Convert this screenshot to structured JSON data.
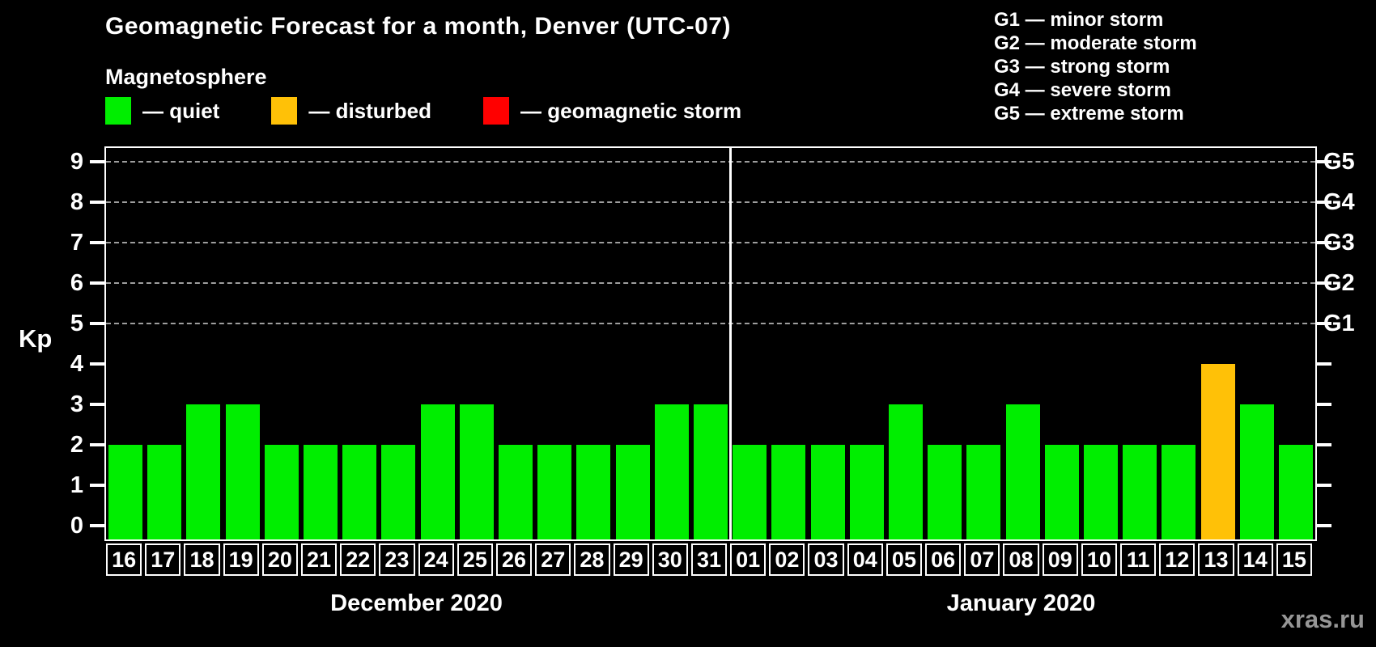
{
  "header": {
    "title": "Geomagnetic Forecast for a month, Denver (UTC-07)",
    "subtitle": "Magnetosphere"
  },
  "legend": {
    "items": [
      {
        "name": "quiet",
        "color": "#00ee00",
        "label": "— quiet"
      },
      {
        "name": "disturbed",
        "color": "#ffc107",
        "label": "— disturbed"
      },
      {
        "name": "geomagnetic-storm",
        "color": "#ff0000",
        "label": "— geomagnetic storm"
      }
    ]
  },
  "storm_legend": {
    "items": [
      "G1 — minor storm",
      "G2 — moderate storm",
      "G3 — strong storm",
      "G4 — severe storm",
      "G5 — extreme storm"
    ]
  },
  "watermark": "xras.ru",
  "chart_data": {
    "type": "bar",
    "title": "Geomagnetic Forecast for a month, Denver (UTC-07)",
    "subtitle": "Magnetosphere",
    "ylabel": "Kp",
    "ylim": [
      0,
      9
    ],
    "y_ticks": [
      0,
      1,
      2,
      3,
      4,
      5,
      6,
      7,
      8,
      9
    ],
    "gridlines_at": [
      5,
      6,
      7,
      8,
      9
    ],
    "grid": "dashed-horizontal",
    "legend_position": "top",
    "right_axis_labels": [
      {
        "kp": 5,
        "label": "G1"
      },
      {
        "kp": 6,
        "label": "G2"
      },
      {
        "kp": 7,
        "label": "G3"
      },
      {
        "kp": 8,
        "label": "G4"
      },
      {
        "kp": 9,
        "label": "G5"
      }
    ],
    "status_colors": {
      "quiet": "#00ee00",
      "disturbed": "#ffc107",
      "storm": "#ff0000"
    },
    "groups": [
      {
        "label": "December 2020",
        "days": [
          {
            "day": "16",
            "value": 2,
            "status": "quiet"
          },
          {
            "day": "17",
            "value": 2,
            "status": "quiet"
          },
          {
            "day": "18",
            "value": 3,
            "status": "quiet"
          },
          {
            "day": "19",
            "value": 3,
            "status": "quiet"
          },
          {
            "day": "20",
            "value": 2,
            "status": "quiet"
          },
          {
            "day": "21",
            "value": 2,
            "status": "quiet"
          },
          {
            "day": "22",
            "value": 2,
            "status": "quiet"
          },
          {
            "day": "23",
            "value": 2,
            "status": "quiet"
          },
          {
            "day": "24",
            "value": 3,
            "status": "quiet"
          },
          {
            "day": "25",
            "value": 3,
            "status": "quiet"
          },
          {
            "day": "26",
            "value": 2,
            "status": "quiet"
          },
          {
            "day": "27",
            "value": 2,
            "status": "quiet"
          },
          {
            "day": "28",
            "value": 2,
            "status": "quiet"
          },
          {
            "day": "29",
            "value": 2,
            "status": "quiet"
          },
          {
            "day": "30",
            "value": 3,
            "status": "quiet"
          },
          {
            "day": "31",
            "value": 3,
            "status": "quiet"
          }
        ]
      },
      {
        "label": "January 2020",
        "days": [
          {
            "day": "01",
            "value": 2,
            "status": "quiet"
          },
          {
            "day": "02",
            "value": 2,
            "status": "quiet"
          },
          {
            "day": "03",
            "value": 2,
            "status": "quiet"
          },
          {
            "day": "04",
            "value": 2,
            "status": "quiet"
          },
          {
            "day": "05",
            "value": 3,
            "status": "quiet"
          },
          {
            "day": "06",
            "value": 2,
            "status": "quiet"
          },
          {
            "day": "07",
            "value": 2,
            "status": "quiet"
          },
          {
            "day": "08",
            "value": 3,
            "status": "quiet"
          },
          {
            "day": "09",
            "value": 2,
            "status": "quiet"
          },
          {
            "day": "10",
            "value": 2,
            "status": "quiet"
          },
          {
            "day": "11",
            "value": 2,
            "status": "quiet"
          },
          {
            "day": "12",
            "value": 2,
            "status": "quiet"
          },
          {
            "day": "13",
            "value": 4,
            "status": "disturbed"
          },
          {
            "day": "14",
            "value": 3,
            "status": "quiet"
          },
          {
            "day": "15",
            "value": 2,
            "status": "quiet"
          }
        ]
      }
    ]
  }
}
